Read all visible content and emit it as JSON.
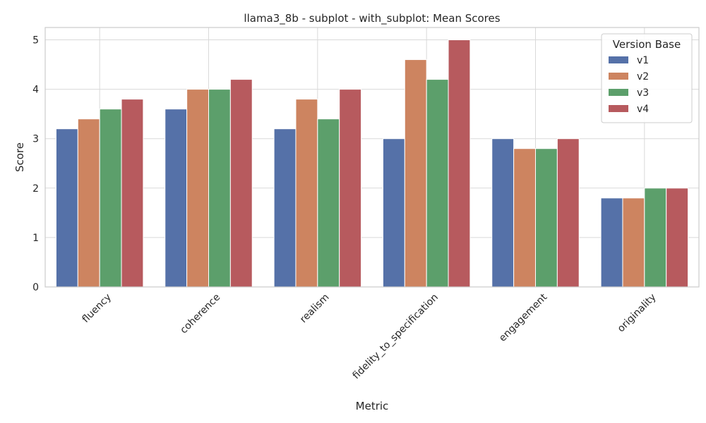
{
  "chart_data": {
    "type": "bar",
    "title": "llama3_8b - subplot - with_subplot: Mean Scores",
    "xlabel": "Metric",
    "ylabel": "Score",
    "ylim": [
      0,
      5.25
    ],
    "yticks": [
      0,
      1,
      2,
      3,
      4,
      5
    ],
    "grid": true,
    "legend": {
      "title": "Version Base",
      "placement": "top-right"
    },
    "categories": [
      "fluency",
      "coherence",
      "realism",
      "fidelity_to_specification",
      "engagement",
      "originality"
    ],
    "series": [
      {
        "name": "v1",
        "color": "#5571a8",
        "values": [
          3.2,
          3.6,
          3.2,
          3.0,
          3.0,
          1.8
        ]
      },
      {
        "name": "v2",
        "color": "#cd8460",
        "values": [
          3.4,
          4.0,
          3.8,
          4.6,
          2.8,
          1.8
        ]
      },
      {
        "name": "v3",
        "color": "#5c9f6b",
        "values": [
          3.6,
          4.0,
          3.4,
          4.2,
          2.8,
          2.0
        ]
      },
      {
        "name": "v4",
        "color": "#b75a5e",
        "values": [
          3.8,
          4.2,
          4.0,
          5.0,
          3.0,
          2.0
        ]
      }
    ]
  }
}
